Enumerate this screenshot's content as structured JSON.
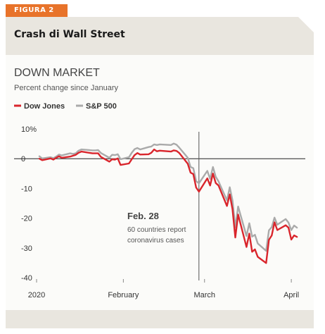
{
  "figure": {
    "tab_label": "FIGURA 2",
    "header_title": "Crash di Wall Street"
  },
  "colors": {
    "accent_orange": "#e8732a",
    "band_bg": "#e9e6df",
    "dow_red": "#d9252c",
    "sp_gray": "#aaaaaa"
  },
  "chart_data": {
    "type": "line",
    "title": "DOWN MARKET",
    "subtitle": "Percent change since January",
    "legend_position": "top-left",
    "grid": false,
    "x_range": [
      "2020-01-01",
      "2020-04-06"
    ],
    "ylim": [
      -40,
      10
    ],
    "y_ticks": [
      {
        "value": 10,
        "label": "10%"
      },
      {
        "value": 0,
        "label": "0"
      },
      {
        "value": -10,
        "label": "-10"
      },
      {
        "value": -20,
        "label": "-20"
      },
      {
        "value": -30,
        "label": "-30"
      },
      {
        "value": -40,
        "label": "-40"
      }
    ],
    "x_ticks": [
      {
        "date": "2020-01-01",
        "label": "2020"
      },
      {
        "date": "2020-02-01",
        "label": "February"
      },
      {
        "date": "2020-03-01",
        "label": "March"
      },
      {
        "date": "2020-04-01",
        "label": "April"
      }
    ],
    "annotation": {
      "date": "2020-02-28",
      "title": "Feb. 28",
      "text_line1": "60 countries report",
      "text_line2": "coronavirus cases"
    },
    "series": [
      {
        "name": "Dow Jones",
        "color": "#d9252c",
        "points": [
          [
            "2020-01-02",
            0.0
          ],
          [
            "2020-01-03",
            -0.5
          ],
          [
            "2020-01-06",
            0.1
          ],
          [
            "2020-01-07",
            -0.3
          ],
          [
            "2020-01-08",
            0.3
          ],
          [
            "2020-01-09",
            0.8
          ],
          [
            "2020-01-10",
            0.3
          ],
          [
            "2020-01-13",
            0.7
          ],
          [
            "2020-01-14",
            1.0
          ],
          [
            "2020-01-15",
            1.3
          ],
          [
            "2020-01-16",
            2.0
          ],
          [
            "2020-01-17",
            2.4
          ],
          [
            "2020-01-21",
            1.8
          ],
          [
            "2020-01-22",
            1.8
          ],
          [
            "2020-01-23",
            1.8
          ],
          [
            "2020-01-24",
            0.6
          ],
          [
            "2020-01-27",
            -1.0
          ],
          [
            "2020-01-28",
            -0.2
          ],
          [
            "2020-01-29",
            -0.3
          ],
          [
            "2020-01-30",
            0.1
          ],
          [
            "2020-01-31",
            -2.1
          ],
          [
            "2020-02-03",
            -1.6
          ],
          [
            "2020-02-04",
            -0.2
          ],
          [
            "2020-02-05",
            1.2
          ],
          [
            "2020-02-06",
            1.9
          ],
          [
            "2020-02-07",
            1.4
          ],
          [
            "2020-02-10",
            1.5
          ],
          [
            "2020-02-11",
            2.0
          ],
          [
            "2020-02-12",
            3.1
          ],
          [
            "2020-02-13",
            2.5
          ],
          [
            "2020-02-14",
            2.7
          ],
          [
            "2020-02-18",
            2.4
          ],
          [
            "2020-02-19",
            2.8
          ],
          [
            "2020-02-20",
            2.6
          ],
          [
            "2020-02-21",
            1.9
          ],
          [
            "2020-02-24",
            -1.7
          ],
          [
            "2020-02-25",
            -4.7
          ],
          [
            "2020-02-26",
            -5.2
          ],
          [
            "2020-02-27",
            -9.7
          ],
          [
            "2020-02-28",
            -11.1
          ],
          [
            "2020-03-02",
            -6.6
          ],
          [
            "2020-03-03",
            -9.0
          ],
          [
            "2020-03-04",
            -5.0
          ],
          [
            "2020-03-05",
            -8.2
          ],
          [
            "2020-03-06",
            -9.0
          ],
          [
            "2020-03-09",
            -15.9
          ],
          [
            "2020-03-10",
            -12.0
          ],
          [
            "2020-03-11",
            -17.0
          ],
          [
            "2020-03-12",
            -26.5
          ],
          [
            "2020-03-13",
            -18.8
          ],
          [
            "2020-03-16",
            -29.7
          ],
          [
            "2020-03-17",
            -25.2
          ],
          [
            "2020-03-18",
            -31.3
          ],
          [
            "2020-03-19",
            -30.5
          ],
          [
            "2020-03-20",
            -33.0
          ],
          [
            "2020-03-23",
            -35.1
          ],
          [
            "2020-03-24",
            -27.3
          ],
          [
            "2020-03-25",
            -25.8
          ],
          [
            "2020-03-26",
            -21.4
          ],
          [
            "2020-03-27",
            -24.0
          ],
          [
            "2020-03-30",
            -22.4
          ],
          [
            "2020-03-31",
            -23.2
          ],
          [
            "2020-04-01",
            -27.2
          ],
          [
            "2020-04-02",
            -25.8
          ],
          [
            "2020-04-03",
            -26.3
          ]
        ]
      },
      {
        "name": "S&P 500",
        "color": "#aaaaaa",
        "points": [
          [
            "2020-01-02",
            0.8
          ],
          [
            "2020-01-03",
            0.1
          ],
          [
            "2020-01-06",
            0.5
          ],
          [
            "2020-01-07",
            0.2
          ],
          [
            "2020-01-08",
            0.7
          ],
          [
            "2020-01-09",
            1.4
          ],
          [
            "2020-01-10",
            1.1
          ],
          [
            "2020-01-13",
            1.8
          ],
          [
            "2020-01-14",
            1.6
          ],
          [
            "2020-01-15",
            1.8
          ],
          [
            "2020-01-16",
            2.7
          ],
          [
            "2020-01-17",
            3.1
          ],
          [
            "2020-01-21",
            2.8
          ],
          [
            "2020-01-22",
            2.8
          ],
          [
            "2020-01-23",
            2.9
          ],
          [
            "2020-01-24",
            1.9
          ],
          [
            "2020-01-27",
            0.3
          ],
          [
            "2020-01-28",
            1.3
          ],
          [
            "2020-01-29",
            1.2
          ],
          [
            "2020-01-30",
            1.5
          ],
          [
            "2020-01-31",
            -0.2
          ],
          [
            "2020-02-03",
            0.5
          ],
          [
            "2020-02-04",
            2.0
          ],
          [
            "2020-02-05",
            3.2
          ],
          [
            "2020-02-06",
            3.6
          ],
          [
            "2020-02-07",
            3.1
          ],
          [
            "2020-02-10",
            3.9
          ],
          [
            "2020-02-11",
            4.1
          ],
          [
            "2020-02-12",
            4.8
          ],
          [
            "2020-02-13",
            4.6
          ],
          [
            "2020-02-14",
            4.8
          ],
          [
            "2020-02-18",
            4.6
          ],
          [
            "2020-02-19",
            5.1
          ],
          [
            "2020-02-20",
            4.7
          ],
          [
            "2020-02-21",
            3.7
          ],
          [
            "2020-02-24",
            0.3
          ],
          [
            "2020-02-25",
            -2.8
          ],
          [
            "2020-02-26",
            -3.2
          ],
          [
            "2020-02-27",
            -7.5
          ],
          [
            "2020-02-28",
            -8.3
          ],
          [
            "2020-03-02",
            -4.1
          ],
          [
            "2020-03-03",
            -6.8
          ],
          [
            "2020-03-04",
            -2.8
          ],
          [
            "2020-03-05",
            -6.1
          ],
          [
            "2020-03-06",
            -7.6
          ],
          [
            "2020-03-09",
            -14.0
          ],
          [
            "2020-03-10",
            -9.6
          ],
          [
            "2020-03-11",
            -14.0
          ],
          [
            "2020-03-12",
            -23.1
          ],
          [
            "2020-03-13",
            -16.1
          ],
          [
            "2020-03-16",
            -26.0
          ],
          [
            "2020-03-17",
            -21.7
          ],
          [
            "2020-03-18",
            -26.2
          ],
          [
            "2020-03-19",
            -25.6
          ],
          [
            "2020-03-20",
            -28.5
          ],
          [
            "2020-03-23",
            -31.0
          ],
          [
            "2020-03-24",
            -24.1
          ],
          [
            "2020-03-25",
            -23.0
          ],
          [
            "2020-03-26",
            -19.8
          ],
          [
            "2020-03-27",
            -22.2
          ],
          [
            "2020-03-30",
            -20.3
          ],
          [
            "2020-03-31",
            -21.5
          ],
          [
            "2020-04-01",
            -24.0
          ],
          [
            "2020-04-02",
            -22.5
          ],
          [
            "2020-04-03",
            -23.2
          ]
        ]
      }
    ]
  }
}
